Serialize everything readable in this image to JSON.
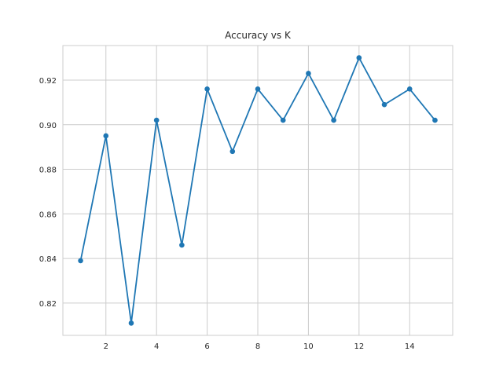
{
  "chart_data": {
    "type": "line",
    "title": "Accuracy vs K",
    "xlabel": "",
    "ylabel": "",
    "xlim": [
      0.3,
      15.7
    ],
    "ylim": [
      0.8055,
      0.9355
    ],
    "xticks": [
      2,
      4,
      6,
      8,
      10,
      12,
      14
    ],
    "yticks": [
      0.82,
      0.84,
      0.86,
      0.88,
      0.9,
      0.92
    ],
    "ytick_labels": [
      "0.82",
      "0.84",
      "0.86",
      "0.88",
      "0.90",
      "0.92"
    ],
    "grid": true,
    "series": [
      {
        "color": "#1f77b4",
        "marker": "circle",
        "x": [
          1,
          2,
          3,
          4,
          5,
          6,
          7,
          8,
          9,
          10,
          11,
          12,
          13,
          14,
          15
        ],
        "y": [
          0.839,
          0.895,
          0.811,
          0.902,
          0.846,
          0.916,
          0.888,
          0.916,
          0.902,
          0.923,
          0.902,
          0.93,
          0.909,
          0.916,
          0.902
        ]
      }
    ]
  }
}
